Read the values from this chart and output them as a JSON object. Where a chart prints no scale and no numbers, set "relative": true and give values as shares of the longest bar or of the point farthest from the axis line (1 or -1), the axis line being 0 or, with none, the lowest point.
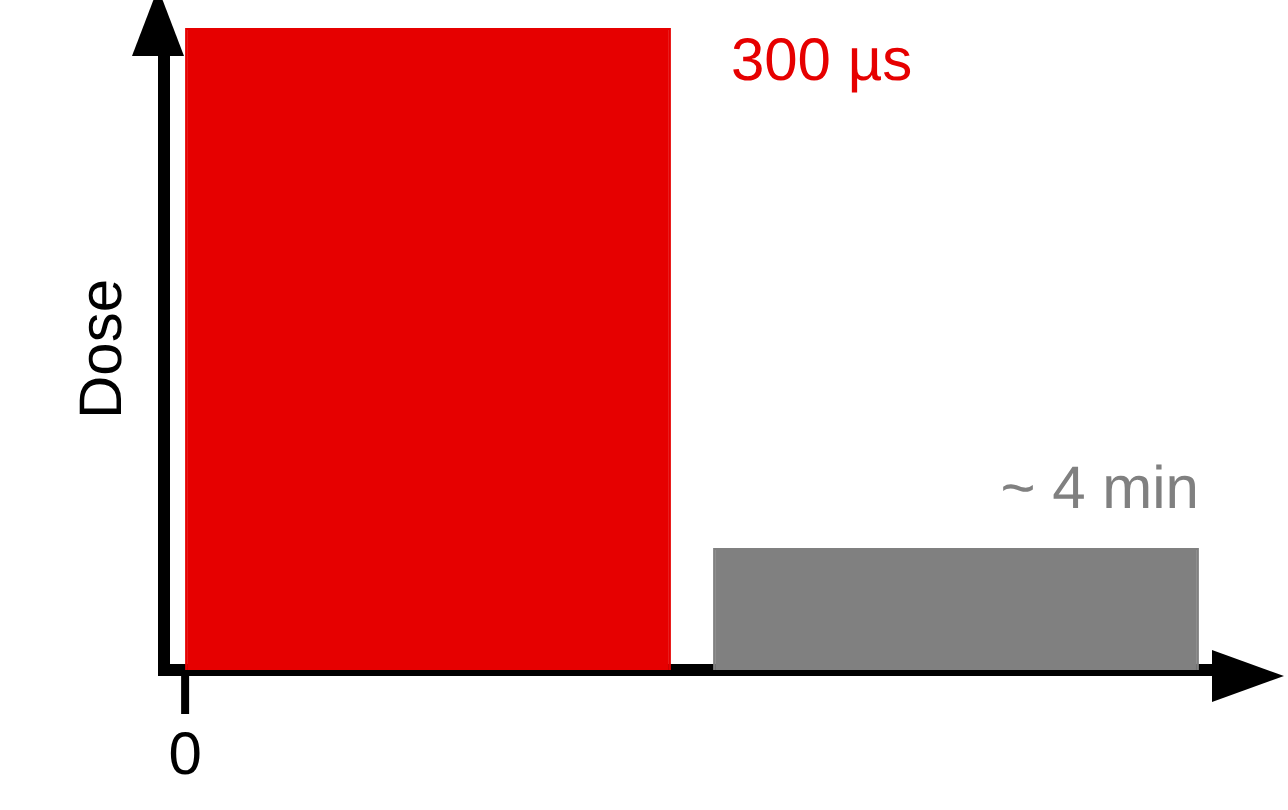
{
  "chart_data": {
    "type": "bar",
    "relative": true,
    "ylabel": "Dose",
    "categories": [
      null,
      null
    ],
    "values": [
      1,
      0.19
    ],
    "colors": [
      "#e60000",
      "#808080"
    ],
    "annotations": [
      "300 µs",
      "~ 4 min",
      "0"
    ]
  }
}
